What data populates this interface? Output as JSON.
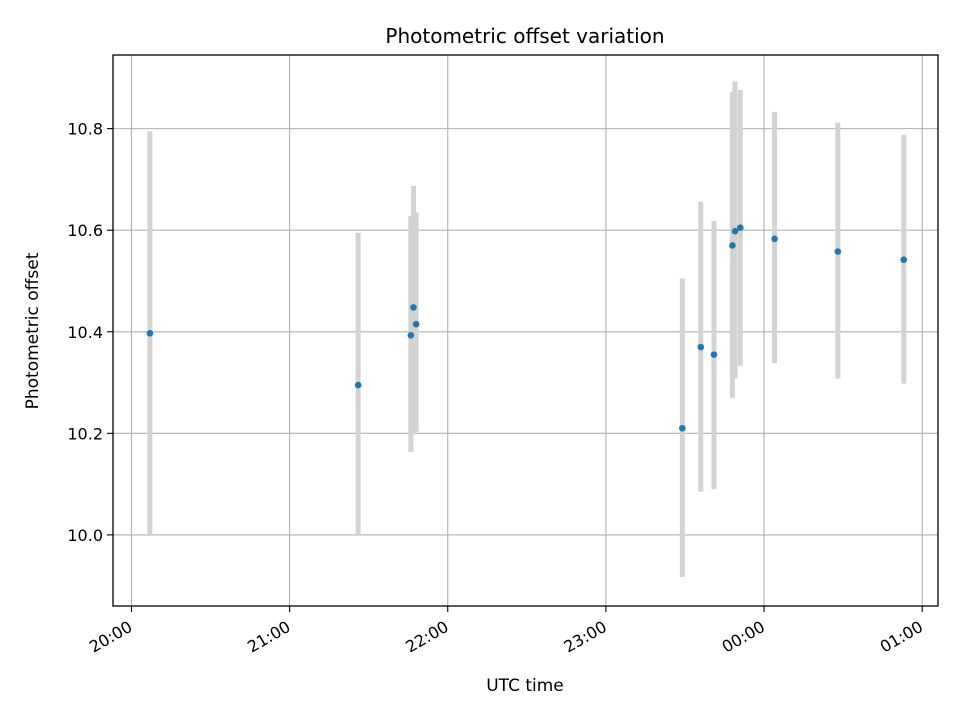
{
  "chart_data": {
    "type": "scatter",
    "title": "Photometric offset variation",
    "xlabel": "UTC time",
    "ylabel": "Photometric offset",
    "x_axis": {
      "unit": "time",
      "range": [
        "19:53",
        "01:06"
      ],
      "ticks": [
        "20:00",
        "21:00",
        "22:00",
        "23:00",
        "00:00",
        "01:00"
      ]
    },
    "y_axis": {
      "range": [
        9.86,
        10.945
      ],
      "ticks": [
        "10.0",
        "10.2",
        "10.4",
        "10.6",
        "10.8"
      ]
    },
    "grid": true,
    "colors": {
      "point": "#1f77b4",
      "errorbar": "#d3d3d3",
      "grid": "#b0b0b0"
    },
    "points": [
      {
        "x": "20:07",
        "y": 10.397,
        "ylow": 10.0,
        "yhigh": 10.795
      },
      {
        "x": "21:26",
        "y": 10.295,
        "ylow": 10.0,
        "yhigh": 10.595
      },
      {
        "x": "21:46",
        "y": 10.393,
        "ylow": 10.163,
        "yhigh": 10.628
      },
      {
        "x": "21:47",
        "y": 10.448,
        "ylow": 10.198,
        "yhigh": 10.687
      },
      {
        "x": "21:48",
        "y": 10.415,
        "ylow": 10.203,
        "yhigh": 10.635
      },
      {
        "x": "23:29",
        "y": 10.21,
        "ylow": 9.917,
        "yhigh": 10.505
      },
      {
        "x": "23:36",
        "y": 10.37,
        "ylow": 10.085,
        "yhigh": 10.656
      },
      {
        "x": "23:41",
        "y": 10.355,
        "ylow": 10.09,
        "yhigh": 10.618
      },
      {
        "x": "23:48",
        "y": 10.57,
        "ylow": 10.27,
        "yhigh": 10.873
      },
      {
        "x": "23:49",
        "y": 10.598,
        "ylow": 10.308,
        "yhigh": 10.893
      },
      {
        "x": "23:51",
        "y": 10.605,
        "ylow": 10.333,
        "yhigh": 10.876
      },
      {
        "x": "00:04",
        "y": 10.583,
        "ylow": 10.338,
        "yhigh": 10.833
      },
      {
        "x": "00:28",
        "y": 10.558,
        "ylow": 10.308,
        "yhigh": 10.812
      },
      {
        "x": "00:53",
        "y": 10.542,
        "ylow": 10.298,
        "yhigh": 10.788
      }
    ]
  }
}
